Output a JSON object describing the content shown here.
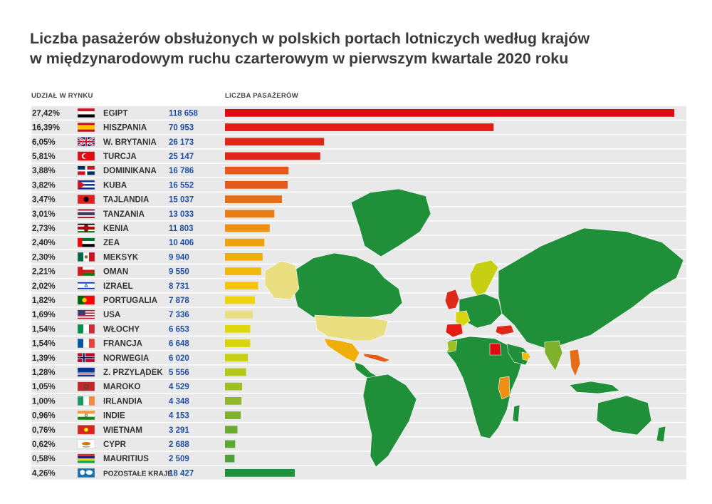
{
  "title": {
    "line1": "Liczba pasażerów obsłużonych w polskich portach lotniczych według krajów",
    "line2": "w międzynarodowym ruchu czarterowym w pierwszym kwartale 2020 roku"
  },
  "headers": {
    "share": "UDZIAŁ W RYNKU",
    "passengers": "LICZBA PASAŻERÓW"
  },
  "colors": {
    "row_shade": "#e9e9e9",
    "value_text": "#1f4fa0",
    "map_land": "#1f8f3a"
  },
  "chart_data": {
    "type": "bar",
    "orientation": "horizontal",
    "grid": false,
    "xlim": [
      0,
      118658
    ],
    "categories": [
      "EGIPT",
      "HISZPANIA",
      "W. BRYTANIA",
      "TURCJA",
      "DOMINIKANA",
      "KUBA",
      "TAJLANDIA",
      "TANZANIA",
      "KENIA",
      "ZEA",
      "MEKSYK",
      "OMAN",
      "IZRAEL",
      "PORTUGALIA",
      "USA",
      "WŁOCHY",
      "FRANCJA",
      "NORWEGIA",
      "Z. PRZYLĄDEK",
      "MAROKO",
      "IRLANDIA",
      "INDIE",
      "WIETNAM",
      "CYPR",
      "MAURITIUS",
      "POZOSTAŁE KRAJE"
    ],
    "values": [
      118658,
      70953,
      26173,
      25147,
      16786,
      16552,
      15037,
      13033,
      11803,
      10406,
      9940,
      9550,
      8731,
      7878,
      7336,
      6653,
      6648,
      6020,
      5556,
      4529,
      4348,
      4153,
      3291,
      2688,
      2509,
      18427
    ],
    "value_labels": [
      "118 658",
      "70 953",
      "26 173",
      "25 147",
      "16 786",
      "16 552",
      "15 037",
      "13 033",
      "11 803",
      "10 406",
      "9 940",
      "9 550",
      "8 731",
      "7 878",
      "7 336",
      "6 653",
      "6 648",
      "6 020",
      "5 556",
      "4 529",
      "4 348",
      "4 153",
      "3 291",
      "2 688",
      "2 509",
      "18 427"
    ],
    "shares": [
      "27,42%",
      "16,39%",
      "6,05%",
      "5,81%",
      "3,88%",
      "3,82%",
      "3,47%",
      "3,01%",
      "2,73%",
      "2,40%",
      "2,30%",
      "2,21%",
      "2,02%",
      "1,82%",
      "1,69%",
      "1,54%",
      "1,54%",
      "1,39%",
      "1,28%",
      "1,05%",
      "1,00%",
      "0,96%",
      "0,76%",
      "0,62%",
      "0,58%",
      "4,26%"
    ],
    "bar_colors": [
      "#e30613",
      "#e31b12",
      "#e0281a",
      "#e0281a",
      "#e35a1a",
      "#e35a1a",
      "#e46d18",
      "#e97d15",
      "#ee9014",
      "#efa20f",
      "#f0ae0a",
      "#f1b90b",
      "#f2c50c",
      "#ecd40e",
      "#e9df80",
      "#dfd60e",
      "#d8d50e",
      "#c6cf12",
      "#b3c818",
      "#9cbf22",
      "#8fb82a",
      "#80b12c",
      "#6aab30",
      "#5ca634",
      "#4da338",
      "#1f8f3a"
    ],
    "flags": [
      "egypt-flag",
      "spain-flag",
      "uk-flag",
      "turkey-flag",
      "dominican-flag",
      "cuba-flag",
      "albania-flag",
      "thailand-flag",
      "kenya-flag",
      "uae-flag",
      "mexico-flag",
      "oman-flag",
      "israel-flag",
      "portugal-flag",
      "usa-flag",
      "italy-flag",
      "france-flag",
      "norway-flag",
      "cape-verde-flag",
      "morocco-flag",
      "ireland-flag",
      "india-flag",
      "vietnam-flag",
      "cyprus-flag",
      "mauritius-flag",
      "world-map-flag"
    ]
  }
}
